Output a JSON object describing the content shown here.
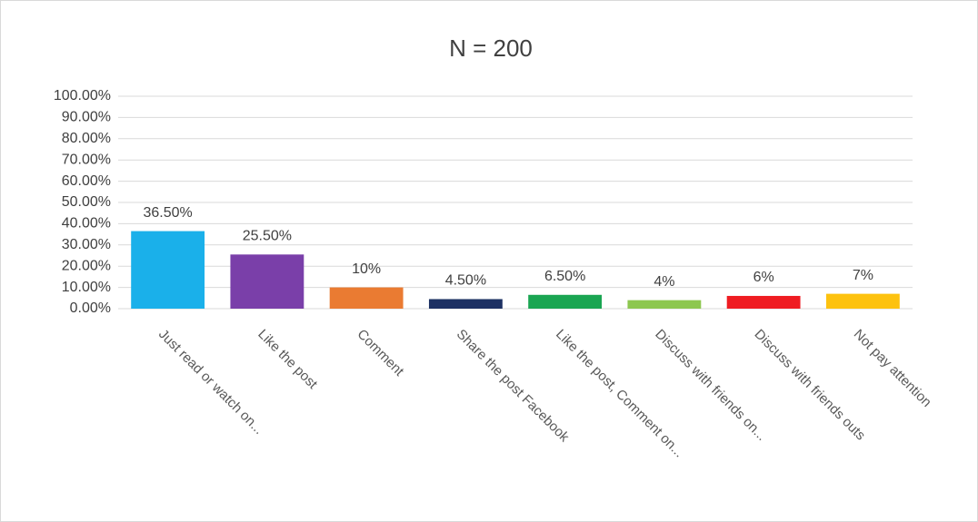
{
  "chart_data": {
    "type": "bar",
    "title": "N = 200",
    "categories": [
      "Just read or watch on...",
      "Like the post",
      "Comment",
      "Share the post Facebook",
      "Like the post, Comment on...",
      "Discuss with friends on...",
      "Discuss with friends outs",
      "Not pay attention"
    ],
    "values": [
      36.5,
      25.5,
      10,
      4.5,
      6.5,
      4,
      6,
      7
    ],
    "value_labels": [
      "36.50%",
      "25.50%",
      "10%",
      "4.50%",
      "6.50%",
      "4%",
      "6%",
      "7%"
    ],
    "colors": [
      "#1ab0ea",
      "#7a3fa9",
      "#ea7b32",
      "#1d3163",
      "#1aa552",
      "#8dc750",
      "#ef1c22",
      "#fdc20f"
    ],
    "ylim": [
      0,
      100
    ],
    "yticks": [
      {
        "value": 0,
        "label": "0.00%"
      },
      {
        "value": 10,
        "label": "10.00%"
      },
      {
        "value": 20,
        "label": "20.00%"
      },
      {
        "value": 30,
        "label": "30.00%"
      },
      {
        "value": 40,
        "label": "40.00%"
      },
      {
        "value": 50,
        "label": "50.00%"
      },
      {
        "value": 60,
        "label": "60.00%"
      },
      {
        "value": 70,
        "label": "70.00%"
      },
      {
        "value": 80,
        "label": "80.00%"
      },
      {
        "value": 90,
        "label": "90.00%"
      },
      {
        "value": 100,
        "label": "100.00%"
      }
    ],
    "grid": true
  }
}
